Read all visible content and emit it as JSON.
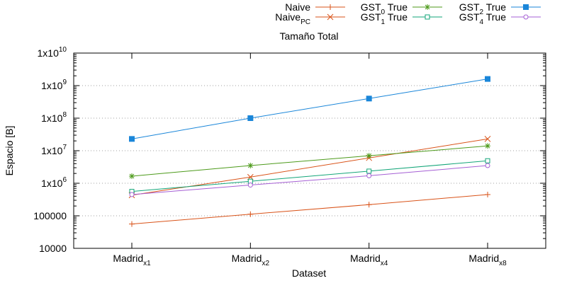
{
  "chart_data": {
    "type": "line",
    "title": "Tamaño Total",
    "xlabel": "Dataset",
    "ylabel": "Espacio [B]",
    "y_scale": "log",
    "ylim": [
      10000,
      10000000000
    ],
    "grid": "y-major dotted",
    "legend_placement": "top",
    "categories": [
      {
        "base": "Madrid",
        "sub": "x1"
      },
      {
        "base": "Madrid",
        "sub": "x2"
      },
      {
        "base": "Madrid",
        "sub": "x4"
      },
      {
        "base": "Madrid",
        "sub": "x8"
      }
    ],
    "y_ticks": [
      {
        "value": 10000,
        "label": "10000"
      },
      {
        "value": 100000,
        "label": "100000"
      },
      {
        "value": 1000000,
        "base": "1x10",
        "exp": "6"
      },
      {
        "value": 10000000,
        "base": "1x10",
        "exp": "7"
      },
      {
        "value": 100000000,
        "base": "1x10",
        "exp": "8"
      },
      {
        "value": 1000000000,
        "base": "1x10",
        "exp": "9"
      },
      {
        "value": 10000000000,
        "base": "1x10",
        "exp": "10"
      }
    ],
    "series": [
      {
        "legend_base": "Naive",
        "legend_sub": "",
        "legend_suffix": "",
        "color": "#d95319",
        "marker": "plus",
        "values": [
          56000,
          112000,
          220000,
          450000
        ]
      },
      {
        "legend_base": "Naive",
        "legend_sub": "PC",
        "legend_suffix": "",
        "color": "#d95319",
        "marker": "cross",
        "values": [
          430000,
          1550000,
          6000000,
          23000000
        ]
      },
      {
        "legend_base": "GST",
        "legend_sub": "0",
        "legend_suffix": " True",
        "color": "#4c9a1a",
        "marker": "star",
        "values": [
          1650000,
          3500000,
          7000000,
          14000000
        ]
      },
      {
        "legend_base": "GST",
        "legend_sub": "1",
        "legend_suffix": " True",
        "color": "#12a578",
        "marker": "square-open",
        "values": [
          560000,
          1150000,
          2350000,
          4900000
        ]
      },
      {
        "legend_base": "GST",
        "legend_sub": "2",
        "legend_suffix": " True",
        "color": "#1a86d9",
        "marker": "square-filled",
        "values": [
          23000000,
          100000000,
          400000000,
          1600000000
        ]
      },
      {
        "legend_base": "GST",
        "legend_sub": "4",
        "legend_suffix": " True",
        "color": "#a55fd4",
        "marker": "circle-open",
        "values": [
          450000,
          880000,
          1700000,
          3500000
        ]
      }
    ]
  }
}
